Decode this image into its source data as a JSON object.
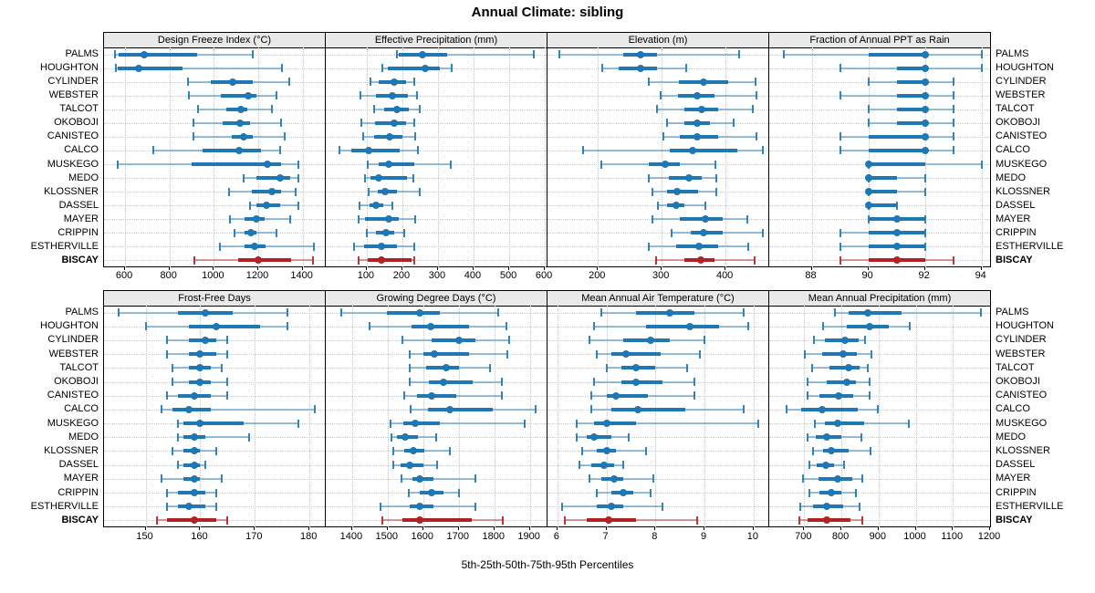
{
  "title": "Annual Climate: sibling",
  "caption": "5th-25th-50th-75th-95th Percentiles",
  "percentile_labels": [
    "5th",
    "25th",
    "50th",
    "75th",
    "95th"
  ],
  "sites": [
    "PALMS",
    "HOUGHTON",
    "CYLINDER",
    "WEBSTER",
    "TALCOT",
    "OKOBOJI",
    "CANISTEO",
    "CALCO",
    "MUSKEGO",
    "MEDO",
    "KLOSSNER",
    "DASSEL",
    "MAYER",
    "CRIPPIN",
    "ESTHERVILLE",
    "BISCAY"
  ],
  "highlight_site": "BISCAY",
  "colors": {
    "series_blue": "#1f77b4",
    "highlight_red": "#b22222",
    "header_bg": "#e9e9e9",
    "gridline": "#c6c6c6",
    "border": "#000000"
  },
  "chart_data": [
    {
      "type": "dotplot-percentiles",
      "title": "Design Freeze Index (°C)",
      "grid_pos": [
        0,
        0
      ],
      "xlim": [
        505,
        1500
      ],
      "xticks": [
        600,
        800,
        1000,
        1200,
        1400
      ],
      "values": [
        [
          555,
          570,
          685,
          925,
          1175
        ],
        [
          558,
          565,
          660,
          858,
          1305
        ],
        [
          885,
          985,
          1086,
          1176,
          1340
        ],
        [
          888,
          1030,
          1155,
          1193,
          1283
        ],
        [
          929,
          1054,
          1121,
          1151,
          1262
        ],
        [
          908,
          1040,
          1117,
          1161,
          1304
        ],
        [
          906,
          1082,
          1135,
          1176,
          1318
        ],
        [
          725,
          950,
          1114,
          1211,
          1297
        ],
        [
          565,
          901,
          1239,
          1304,
          1380
        ],
        [
          1135,
          1193,
          1300,
          1345,
          1380
        ],
        [
          1068,
          1172,
          1260,
          1304,
          1367
        ],
        [
          1161,
          1193,
          1235,
          1297,
          1380
        ],
        [
          1071,
          1138,
          1193,
          1228,
          1343
        ],
        [
          1092,
          1138,
          1165,
          1193,
          1283
        ],
        [
          1026,
          1138,
          1182,
          1232,
          1450
        ],
        [
          912,
          1110,
          1200,
          1346,
          1446
        ]
      ]
    },
    {
      "type": "dotplot-percentiles",
      "title": "Effective Precipitation (mm)",
      "grid_pos": [
        0,
        1
      ],
      "xlim": [
        -15,
        605
      ],
      "xticks": [
        100,
        200,
        300,
        400,
        500,
        600
      ],
      "values": [
        [
          186,
          190,
          257,
          325,
          568
        ],
        [
          144,
          159,
          265,
          305,
          339
        ],
        [
          110,
          134,
          176,
          210,
          233
        ],
        [
          83,
          125,
          172,
          216,
          240
        ],
        [
          121,
          148,
          185,
          219,
          250
        ],
        [
          85,
          123,
          178,
          210,
          233
        ],
        [
          89,
          121,
          165,
          199,
          236
        ],
        [
          24,
          58,
          106,
          193,
          244
        ],
        [
          104,
          134,
          161,
          233,
          337
        ],
        [
          96,
          110,
          134,
          214,
          231
        ],
        [
          106,
          130,
          151,
          186,
          248
        ],
        [
          79,
          108,
          125,
          147,
          172
        ],
        [
          76,
          96,
          161,
          191,
          236
        ],
        [
          100,
          125,
          153,
          178,
          206
        ],
        [
          64,
          93,
          140,
          186,
          233
        ],
        [
          76,
          102,
          140,
          227,
          233
        ]
      ]
    },
    {
      "type": "dotplot-percentiles",
      "title": "Elevation (m)",
      "grid_pos": [
        0,
        2
      ],
      "xlim": [
        121,
        467
      ],
      "xticks": [
        200,
        300,
        400
      ],
      "values": [
        [
          140,
          240,
          267,
          292,
          421
        ],
        [
          207,
          232,
          267,
          292,
          339
        ],
        [
          280,
          327,
          366,
          404,
          447
        ],
        [
          299,
          326,
          356,
          383,
          449
        ],
        [
          292,
          336,
          363,
          388,
          443
        ],
        [
          309,
          336,
          356,
          376,
          413
        ],
        [
          302,
          329,
          355,
          388,
          449
        ],
        [
          177,
          313,
          349,
          418,
          459
        ],
        [
          206,
          280,
          306,
          328,
          384
        ],
        [
          280,
          311,
          343,
          363,
          386
        ],
        [
          285,
          308,
          324,
          357,
          386
        ],
        [
          294,
          308,
          322,
          336,
          368
        ],
        [
          286,
          329,
          368,
          396,
          434
        ],
        [
          316,
          346,
          366,
          396,
          458
        ],
        [
          280,
          323,
          358,
          388,
          436
        ],
        [
          291,
          336,
          361,
          382,
          445
        ]
      ]
    },
    {
      "type": "dotplot-percentiles",
      "title": "Fraction of Annual PPT as Rain",
      "grid_pos": [
        0,
        3
      ],
      "xlim": [
        86.5,
        94.3
      ],
      "xticks": [
        88,
        90,
        92,
        94
      ],
      "values": [
        [
          87,
          90,
          92,
          92,
          94
        ],
        [
          89,
          91,
          92,
          92,
          94
        ],
        [
          90,
          91,
          92,
          92,
          93
        ],
        [
          89,
          91,
          92,
          92,
          93
        ],
        [
          90,
          91,
          92,
          92,
          93
        ],
        [
          90,
          91,
          92,
          92,
          93
        ],
        [
          89,
          90,
          92,
          92,
          93
        ],
        [
          89,
          90,
          92,
          92,
          93
        ],
        [
          90,
          90,
          90,
          92,
          94
        ],
        [
          90,
          90,
          90,
          91,
          92
        ],
        [
          90,
          90,
          90,
          91,
          92
        ],
        [
          90,
          90,
          90,
          91,
          91
        ],
        [
          90,
          90,
          91,
          92,
          92
        ],
        [
          89,
          90,
          91,
          92,
          92
        ],
        [
          89,
          90,
          91,
          92,
          92
        ],
        [
          89,
          90,
          91,
          92,
          93
        ]
      ]
    },
    {
      "type": "dotplot-percentiles",
      "title": "Frost-Free Days",
      "grid_pos": [
        1,
        0
      ],
      "xlim": [
        142.4,
        182.8
      ],
      "xticks": [
        150,
        160,
        170,
        180
      ],
      "values": [
        [
          145,
          156,
          161,
          166,
          176
        ],
        [
          150,
          158,
          163,
          171,
          176
        ],
        [
          154,
          158,
          161,
          163,
          165
        ],
        [
          154,
          158,
          160,
          163,
          165
        ],
        [
          155,
          158,
          160,
          162,
          164
        ],
        [
          155,
          158,
          160,
          162,
          165
        ],
        [
          154,
          156,
          159,
          162,
          165
        ],
        [
          153,
          155,
          158,
          162,
          181
        ],
        [
          156,
          157,
          160,
          168,
          178
        ],
        [
          156,
          157,
          159,
          161,
          169
        ],
        [
          155,
          157,
          159,
          160,
          163
        ],
        [
          156,
          157,
          159,
          160,
          161
        ],
        [
          153,
          157,
          159,
          160,
          164
        ],
        [
          154,
          156,
          159,
          161,
          163
        ],
        [
          154,
          156,
          158,
          161,
          163
        ],
        [
          152,
          154,
          159,
          163,
          165
        ]
      ]
    },
    {
      "type": "dotplot-percentiles",
      "title": "Growing Degree Days (°C)",
      "grid_pos": [
        1,
        1
      ],
      "xlim": [
        1326,
        1947
      ],
      "xticks": [
        1400,
        1500,
        1600,
        1700,
        1800,
        1900
      ],
      "values": [
        [
          1370,
          1498,
          1590,
          1647,
          1810
        ],
        [
          1449,
          1566,
          1621,
          1730,
          1834
        ],
        [
          1542,
          1624,
          1700,
          1746,
          1843
        ],
        [
          1562,
          1600,
          1631,
          1730,
          1836
        ],
        [
          1562,
          1608,
          1666,
          1700,
          1789
        ],
        [
          1562,
          1617,
          1658,
          1738,
          1821
        ],
        [
          1547,
          1583,
          1624,
          1694,
          1820
        ],
        [
          1564,
          1613,
          1675,
          1796,
          1915
        ],
        [
          1508,
          1545,
          1577,
          1647,
          1885
        ],
        [
          1510,
          1527,
          1550,
          1585,
          1637
        ],
        [
          1517,
          1547,
          1572,
          1603,
          1675
        ],
        [
          1515,
          1536,
          1563,
          1600,
          1640
        ],
        [
          1540,
          1570,
          1591,
          1630,
          1746
        ],
        [
          1560,
          1591,
          1624,
          1657,
          1700
        ],
        [
          1481,
          1562,
          1591,
          1628,
          1746
        ],
        [
          1485,
          1542,
          1590,
          1736,
          1823
        ]
      ]
    },
    {
      "type": "dotplot-percentiles",
      "title": "Mean Annual Air Temperature (°C)",
      "grid_pos": [
        1,
        2
      ],
      "xlim": [
        5.8,
        10.3
      ],
      "xticks": [
        6,
        7,
        8,
        9,
        10
      ],
      "values": [
        [
          6.9,
          7.6,
          8.3,
          8.8,
          9.8
        ],
        [
          6.75,
          7.8,
          8.7,
          9.3,
          9.9
        ],
        [
          6.65,
          7.35,
          7.9,
          8.3,
          9.0
        ],
        [
          6.8,
          7.1,
          7.4,
          8.1,
          8.9
        ],
        [
          7.0,
          7.3,
          7.6,
          8.0,
          8.65
        ],
        [
          6.75,
          7.3,
          7.6,
          8.15,
          8.8
        ],
        [
          6.7,
          7.0,
          7.2,
          7.85,
          8.8
        ],
        [
          6.7,
          7.1,
          7.65,
          8.6,
          9.8
        ],
        [
          6.4,
          6.75,
          7.0,
          7.6,
          10.1
        ],
        [
          6.4,
          6.6,
          6.75,
          7.1,
          7.45
        ],
        [
          6.5,
          6.8,
          7.0,
          7.2,
          7.8
        ],
        [
          6.45,
          6.7,
          6.95,
          7.15,
          7.35
        ],
        [
          6.65,
          6.9,
          7.15,
          7.35,
          7.95
        ],
        [
          6.8,
          7.1,
          7.35,
          7.55,
          7.9
        ],
        [
          6.1,
          6.8,
          7.1,
          7.35,
          8.15
        ],
        [
          6.15,
          6.6,
          7.05,
          7.6,
          8.85
        ]
      ]
    },
    {
      "type": "dotplot-percentiles",
      "title": "Mean Annual Precipitation (mm)",
      "grid_pos": [
        1,
        3
      ],
      "xlim": [
        606,
        1200
      ],
      "xticks": [
        700,
        800,
        900,
        1000,
        1100,
        1200
      ],
      "values": [
        [
          782,
          820,
          872,
          962,
          1175
        ],
        [
          750,
          815,
          877,
          927,
          985
        ],
        [
          726,
          756,
          810,
          846,
          864
        ],
        [
          702,
          748,
          804,
          842,
          880
        ],
        [
          722,
          768,
          820,
          848,
          872
        ],
        [
          710,
          760,
          814,
          838,
          877
        ],
        [
          710,
          740,
          793,
          832,
          877
        ],
        [
          652,
          692,
          748,
          844,
          897
        ],
        [
          728,
          756,
          790,
          862,
          982
        ],
        [
          710,
          732,
          761,
          800,
          854
        ],
        [
          724,
          750,
          773,
          820,
          878
        ],
        [
          714,
          734,
          758,
          780,
          808
        ],
        [
          696,
          738,
          790,
          830,
          856
        ],
        [
          714,
          742,
          772,
          800,
          840
        ],
        [
          690,
          724,
          761,
          806,
          850
        ],
        [
          686,
          710,
          761,
          825,
          856
        ]
      ]
    }
  ]
}
